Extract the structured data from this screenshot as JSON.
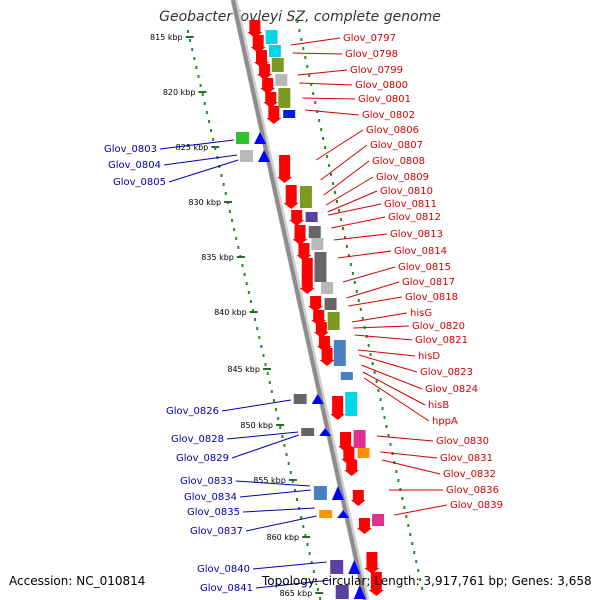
{
  "title": "Geobacter lovleyi SZ, complete genome",
  "footer": {
    "accession": "Accession: NC_010814",
    "summary": "Topology: circular; Length: 3,917,761 bp; Genes: 3,658"
  },
  "colors": {
    "backbone": "#8c8c8c",
    "forward_gene": "#ff0000",
    "reverse_gene": "#0000ff",
    "forward_label": "#d40000",
    "reverse_label": "#0000b0",
    "kbp_ring": "#2a8a2a"
  },
  "kbp_labels": [
    "815 kbp",
    "820 kbp",
    "825 kbp",
    "830 kbp",
    "835 kbp",
    "840 kbp",
    "845 kbp",
    "850 kbp",
    "855 kbp",
    "860 kbp",
    "865 kbp"
  ],
  "forward_labels": [
    "Glov_0797",
    "Glov_0798",
    "Glov_0799",
    "Glov_0800",
    "Glov_0801",
    "Glov_0802",
    "Glov_0806",
    "Glov_0807",
    "Glov_0808",
    "Glov_0809",
    "Glov_0810",
    "Glov_0811",
    "Glov_0812",
    "Glov_0813",
    "Glov_0814",
    "Glov_0815",
    "Glov_0817",
    "Glov_0818",
    "hisG",
    "Glov_0820",
    "Glov_0821",
    "hisD",
    "Glov_0823",
    "Glov_0824",
    "hisB",
    "hppA",
    "Glov_0830",
    "Glov_0831",
    "Glov_0832",
    "Glov_0836",
    "Glov_0839"
  ],
  "reverse_labels": [
    "Glov_0803",
    "Glov_0804",
    "Glov_0805",
    "Glov_0826",
    "Glov_0828",
    "Glov_0829",
    "Glov_0833",
    "Glov_0834",
    "Glov_0835",
    "Glov_0837",
    "Glov_0840",
    "Glov_0841"
  ]
}
